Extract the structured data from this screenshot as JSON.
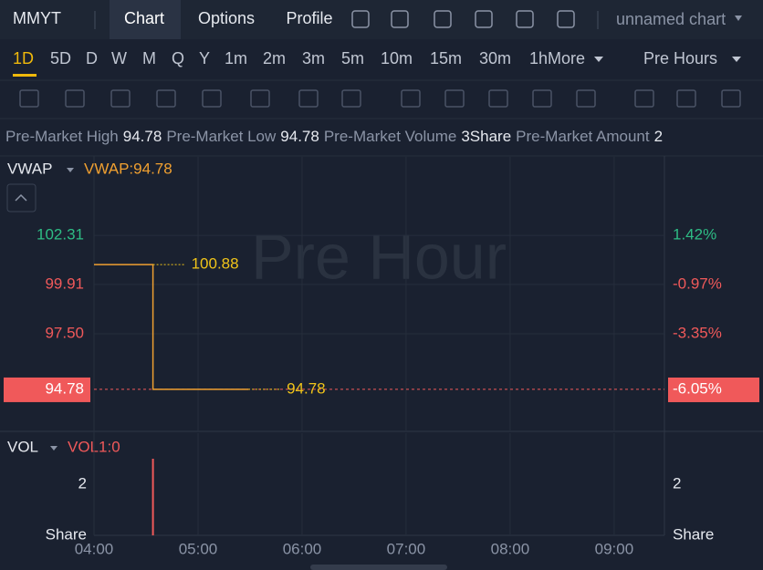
{
  "header": {
    "symbol": "MMYT",
    "tabs": [
      "Chart",
      "Options",
      "Profile"
    ],
    "chart_name": "unnamed chart"
  },
  "timeframes": {
    "items": [
      "1D",
      "5D",
      "D",
      "W",
      "M",
      "Q",
      "Y",
      "1m",
      "2m",
      "3m",
      "5m",
      "10m",
      "15m",
      "30m",
      "1h"
    ],
    "more": "More",
    "session": "Pre Hours"
  },
  "info_bar": [
    {
      "label": "Pre-Market High",
      "value": "94.78"
    },
    {
      "label": "Pre-Market Low",
      "value": "94.78"
    },
    {
      "label": "Pre-Market Volume",
      "value": "3Share"
    },
    {
      "label": "Pre-Market Amount",
      "value": "2"
    }
  ],
  "chart_data": {
    "type": "line",
    "watermark": "Pre Hour",
    "indicator": "VWAP",
    "indicator_value": "VWAP:94.78",
    "xlim": [
      "04:00",
      "09:29"
    ],
    "xticks": [
      "04:00",
      "05:00",
      "06:00",
      "07:00",
      "08:00",
      "09:00"
    ],
    "ylim": [
      92.77,
      106.15
    ],
    "yticks": [
      102.31,
      99.91,
      {
        "value": 97.5,
        "label": "97.50"
      },
      94.78
    ],
    "y2lim": [
      -8.04,
      5.22
    ],
    "y2ticks": [
      {
        "value": 1.42,
        "label": "1.42%"
      },
      {
        "value": -0.97,
        "label": "-0.97%"
      },
      {
        "value": -3.35,
        "label": "-3.35%"
      },
      {
        "value": -6.05,
        "label": "-6.05%"
      }
    ],
    "base": 100.88,
    "current_price": 94.78,
    "up_color": "#2ebd85",
    "down_color": "#f0595a",
    "grid": true,
    "series": [
      {
        "name": "VWAP",
        "color": "#f0a030",
        "x": [
          "04:00",
          "04:34",
          "04:34",
          "05:29"
        ],
        "values": [
          100.88,
          100.88,
          94.78,
          94.78
        ]
      }
    ],
    "annotations": [
      {
        "text": "100.88",
        "x": "04:34",
        "y": 100.88
      },
      {
        "text": "94.78",
        "x": "05:29",
        "y": 94.78
      }
    ],
    "volume": {
      "indicator": "VOL",
      "indicator_value": "VOL1:0",
      "unit": "Share",
      "ylim": [
        0,
        4
      ],
      "yticks": [
        2
      ],
      "color": "#f0595a",
      "x": [
        "04:34"
      ],
      "values": [
        3
      ]
    }
  }
}
